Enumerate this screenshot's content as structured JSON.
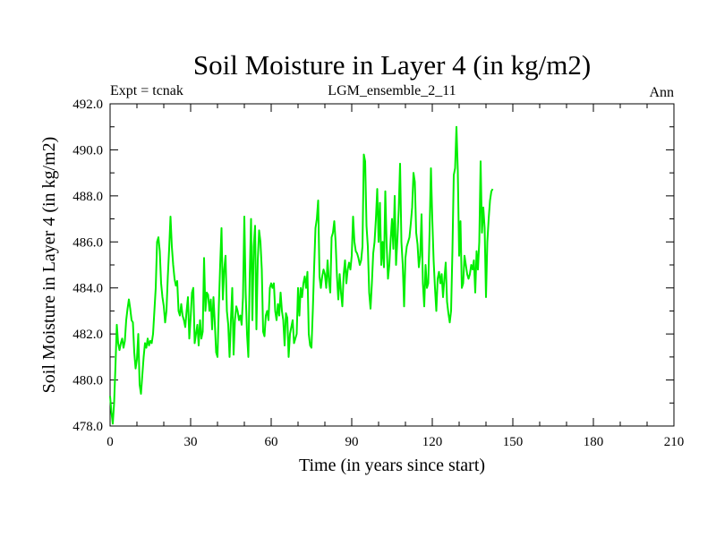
{
  "chart_data": {
    "type": "line",
    "title": "Soil Moisture in Layer 4 (in kg/m2)",
    "subtitle_left": "Expt = tcnak",
    "subtitle_center": "LGM_ensemble_2_11",
    "subtitle_right": "Ann",
    "xlabel": "Time (in years since start)",
    "ylabel": "Soil Moisture in Layer 4 (in kg/m2)",
    "xlim": [
      0,
      210
    ],
    "ylim": [
      478,
      492
    ],
    "xticks": [
      0,
      30,
      60,
      90,
      120,
      150,
      180,
      210
    ],
    "xtick_labels": [
      "0",
      "30",
      "60",
      "90",
      "120",
      "150",
      "180",
      "210"
    ],
    "yticks": [
      478,
      480,
      482,
      484,
      486,
      488,
      490,
      492
    ],
    "ytick_labels": [
      "478.0",
      "480.0",
      "482.0",
      "484.0",
      "486.0",
      "488.0",
      "490.0",
      "492.0"
    ],
    "grid": false,
    "series": [
      {
        "name": "Soil Moisture Layer 4",
        "color": "#00ee00",
        "x_start": 0,
        "x_step": 0.5,
        "values": [
          479.3,
          478.6,
          478.1,
          479.0,
          480.6,
          482.4,
          481.6,
          481.3,
          481.6,
          481.8,
          481.4,
          481.7,
          482.6,
          483.1,
          483.5,
          483.1,
          482.6,
          482.5,
          481.2,
          480.5,
          480.9,
          482.0,
          479.8,
          479.4,
          480.2,
          481.0,
          481.6,
          481.4,
          481.8,
          481.5,
          481.7,
          481.6,
          482.0,
          483.0,
          484.0,
          486.0,
          486.2,
          485.6,
          484.2,
          483.6,
          483.2,
          482.5,
          483.0,
          484.5,
          485.7,
          487.1,
          485.8,
          485.0,
          484.4,
          484.1,
          484.3,
          483.0,
          482.8,
          483.3,
          482.8,
          482.6,
          482.3,
          483.0,
          483.6,
          481.8,
          482.7,
          483.8,
          484.0,
          481.6,
          482.0,
          482.4,
          481.5,
          482.6,
          481.8,
          482.1,
          485.3,
          483.0,
          483.8,
          483.7,
          483.0,
          483.5,
          482.2,
          483.6,
          482.5,
          481.2,
          481.0,
          483.2,
          485.0,
          486.6,
          483.5,
          484.8,
          485.4,
          483.0,
          482.4,
          481.0,
          482.6,
          484.0,
          481.1,
          482.6,
          483.2,
          483.0,
          482.6,
          482.8,
          482.4,
          483.6,
          487.1,
          483.8,
          482.0,
          481.0,
          484.5,
          487.0,
          482.6,
          485.8,
          486.7,
          482.2,
          485.2,
          486.5,
          486.0,
          484.8,
          482.1,
          481.9,
          482.8,
          483.0,
          482.6,
          484.0,
          484.2,
          484.0,
          484.2,
          483.0,
          482.6,
          483.3,
          482.8,
          483.8,
          483.0,
          482.6,
          481.5,
          482.9,
          482.7,
          481.0,
          482.0,
          482.3,
          482.6,
          481.6,
          481.8,
          482.0,
          484.0,
          482.8,
          484.0,
          483.6,
          484.2,
          484.5,
          484.0,
          484.7,
          482.0,
          481.5,
          481.4,
          483.0,
          484.9,
          486.6,
          487.0,
          487.8,
          484.5,
          484.0,
          484.5,
          484.8,
          484.6,
          484.0,
          485.2,
          484.3,
          483.8,
          486.2,
          486.4,
          486.9,
          486.0,
          484.5,
          483.5,
          484.6,
          483.8,
          483.2,
          484.6,
          485.2,
          484.2,
          484.8,
          485.1,
          484.8,
          485.4,
          487.1,
          486.0,
          485.6,
          485.5,
          485.3,
          485.0,
          485.2,
          485.8,
          489.8,
          489.5,
          486.7,
          485.8,
          483.8,
          483.1,
          484.2,
          485.5,
          486.0,
          487.0,
          488.3,
          486.0,
          487.7,
          485.0,
          486.0,
          484.9,
          488.2,
          485.9,
          484.4,
          485.0,
          486.1,
          487.0,
          485.7,
          488.0,
          485.0,
          486.1,
          487.4,
          489.4,
          486.0,
          485.0,
          483.2,
          485.3,
          485.8,
          486.0,
          486.2,
          486.8,
          487.5,
          489.0,
          488.6,
          486.4,
          485.9,
          484.9,
          485.4,
          487.2,
          484.2,
          483.2,
          485.0,
          484.0,
          484.2,
          486.5,
          489.2,
          487.0,
          485.2,
          484.0,
          483.0,
          484.4,
          484.7,
          484.2,
          484.6,
          483.6,
          484.4,
          485.1,
          483.4,
          482.9,
          482.5,
          483.0,
          485.6,
          488.9,
          489.2,
          491.0,
          489.1,
          485.4,
          486.9,
          484.0,
          484.2,
          485.4,
          485.0,
          484.6,
          484.4,
          484.6,
          485.0,
          484.8,
          485.2,
          483.8,
          485.6,
          484.8,
          486.0,
          489.5,
          486.4,
          487.5,
          486.6,
          483.6,
          486.0,
          487.0,
          487.8,
          488.2,
          488.3
        ]
      }
    ]
  }
}
